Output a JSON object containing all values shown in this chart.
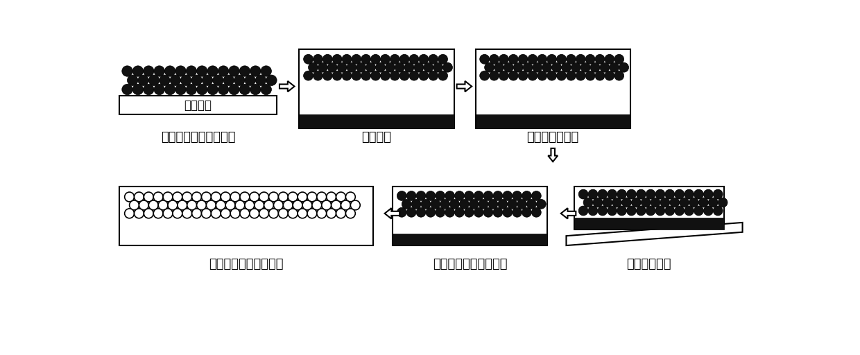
{
  "bg_color": "#ffffff",
  "text_color": "#000000",
  "ball_color": "#111111",
  "ball_edge_color": "#000000",
  "step_labels": [
    "自组装法制备胶体晶膜",
    "填充间隙",
    "聚合或溶剂蝉发",
    "形成有序多孔纳米结构",
    "腑蚀去除二氧化硅模板",
    "分离载玻璃片"
  ],
  "substrate_label": "载玻璃片",
  "font_size": 12,
  "label_font_size": 13
}
